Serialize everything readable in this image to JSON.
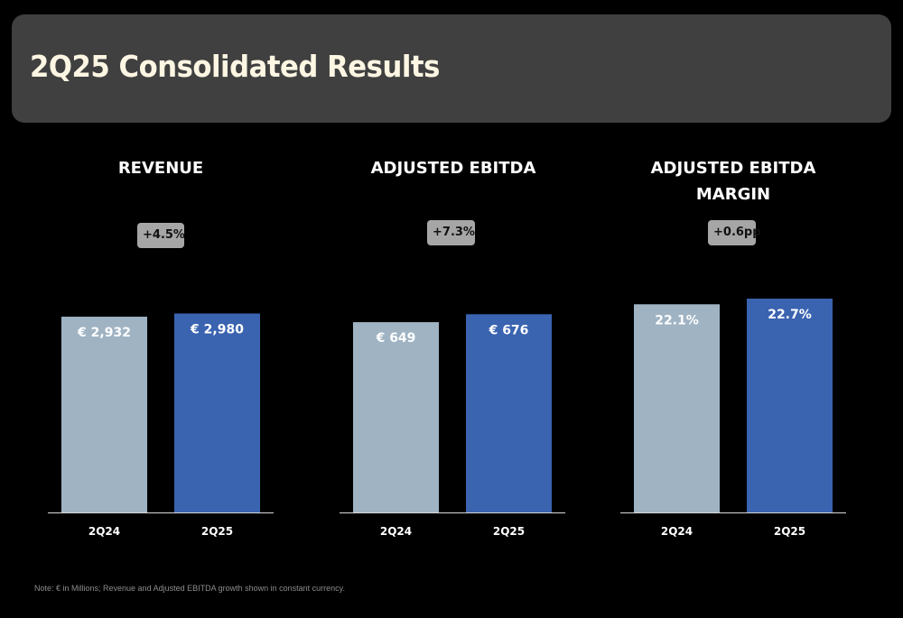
{
  "header": {
    "title": "2Q25 Consolidated Results"
  },
  "colors": {
    "background": "#000000",
    "header_bg": "#404040",
    "prior_bar": "#9fb3c3",
    "current_bar": "#3a63b0",
    "badge_bg": "#a6a6a6"
  },
  "panels": [
    {
      "title_line1": "REVENUE",
      "title_line2": "",
      "badge": "+4.5%"
    },
    {
      "title_line1": "ADJUSTED EBITDA",
      "title_line2": "",
      "badge": "+7.3%"
    },
    {
      "title_line1": "ADJUSTED EBITDA",
      "title_line2": "MARGIN",
      "badge": "+0.6pp"
    }
  ],
  "chart_data": [
    {
      "type": "bar",
      "title": "REVENUE",
      "categories": [
        "2Q24",
        "2Q25"
      ],
      "values": [
        2932,
        2980
      ],
      "labels": [
        "€ 2,932",
        "€ 2,980"
      ],
      "annotation": "+4.5%",
      "ylim": [
        0,
        3000
      ]
    },
    {
      "type": "bar",
      "title": "ADJUSTED EBITDA",
      "categories": [
        "2Q24",
        "2Q25"
      ],
      "values": [
        649,
        676
      ],
      "labels": [
        "€ 649",
        "€ 676"
      ],
      "annotation": "+7.3%",
      "ylim": [
        0,
        680
      ]
    },
    {
      "type": "bar",
      "title": "ADJUSTED EBITDA MARGIN",
      "categories": [
        "2Q24",
        "2Q25"
      ],
      "values": [
        22.1,
        22.7
      ],
      "labels": [
        "22.1%",
        "22.7%"
      ],
      "annotation": "+0.6pp",
      "ylim": [
        0,
        22.7
      ]
    }
  ],
  "footer": {
    "note": "Note: € in Millions; Revenue and Adjusted EBITDA growth shown in constant currency."
  }
}
